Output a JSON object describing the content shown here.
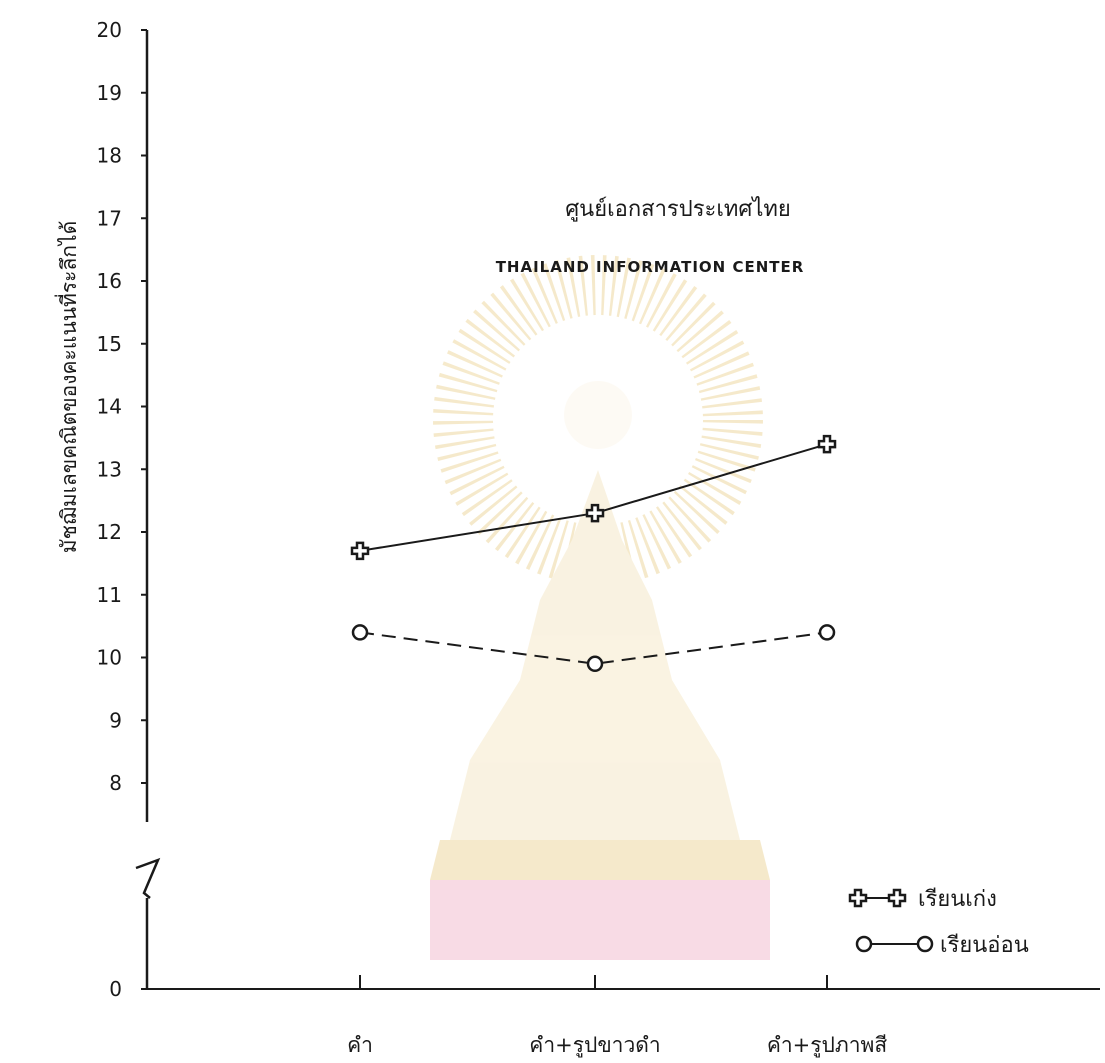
{
  "watermark": {
    "thai": "ศูนย์เอกสารประเทศไทย",
    "english": "THAILAND INFORMATION CENTER",
    "emblem_icon": "chulalongkorn-emblem-icon"
  },
  "chart_data": {
    "type": "line",
    "ylabel": "มัชฌิมเลขคณิตของคะแนนที่ระลึกได้",
    "xlabel": "",
    "categories": [
      "คำ",
      "คำ+รูปขาวดำ",
      "คำ+รูปภาพสี"
    ],
    "y_ticks": [
      0,
      8,
      9,
      10,
      11,
      12,
      13,
      14,
      15,
      16,
      17,
      18,
      19,
      20
    ],
    "ylim": [
      0,
      20
    ],
    "axis_break": true,
    "grid": false,
    "legend_position": "bottom-right",
    "series": [
      {
        "name": "เรียนเก่ง",
        "values": [
          11.7,
          12.3,
          13.4
        ],
        "marker": "cross",
        "line_style": "solid",
        "color": "#1a1a1a"
      },
      {
        "name": "เรียนอ่อน",
        "values": [
          10.4,
          9.9,
          10.4
        ],
        "marker": "circle",
        "line_style": "dashed",
        "color": "#1a1a1a"
      }
    ]
  }
}
